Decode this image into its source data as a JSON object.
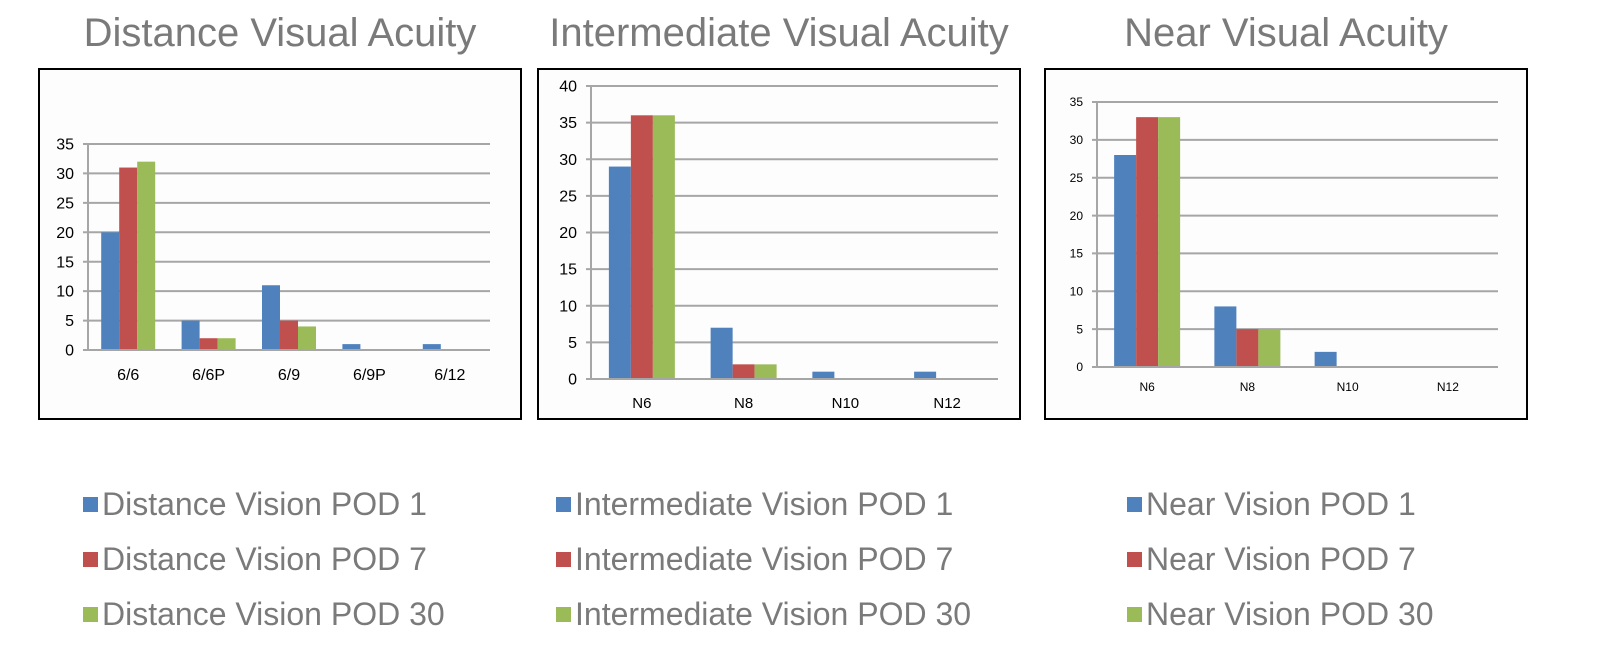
{
  "colors": {
    "series": [
      "#4F81BD",
      "#C0504D",
      "#9BBB59"
    ],
    "gridline": "#a6a6a6",
    "frame": "#000000",
    "plot_bg": "#fdfdfd"
  },
  "legends": [
    [
      "Distance Vision POD 1",
      "Distance Vision POD 7",
      "Distance Vision POD 30"
    ],
    [
      "Intermediate Vision POD 1",
      "Intermediate Vision POD 7",
      "Intermediate Vision POD 30"
    ],
    [
      "Near Vision POD 1",
      "Near Vision POD 7",
      "Near Vision POD 30"
    ]
  ],
  "chart_data": [
    {
      "type": "bar",
      "title": "Distance Visual Acuity",
      "categories": [
        "6/6",
        "6/6P",
        "6/9",
        "6/9P",
        "6/12"
      ],
      "series": [
        {
          "name": "Distance Vision POD 1",
          "values": [
            20,
            5,
            11,
            1,
            1
          ]
        },
        {
          "name": "Distance Vision POD 7",
          "values": [
            31,
            2,
            5,
            0,
            0
          ]
        },
        {
          "name": "Distance Vision POD 30",
          "values": [
            32,
            2,
            4,
            0,
            0
          ]
        }
      ],
      "ylim": [
        0,
        35
      ],
      "yticks": [
        "0",
        "5",
        "10",
        "15",
        "20",
        "25",
        "30",
        "35"
      ],
      "grid": true
    },
    {
      "type": "bar",
      "title": "Intermediate Visual Acuity",
      "categories": [
        "N6",
        "N8",
        "N10",
        "N12"
      ],
      "series": [
        {
          "name": "Intermediate Vision POD 1",
          "values": [
            29,
            7,
            1,
            1
          ]
        },
        {
          "name": "Intermediate Vision POD 7",
          "values": [
            36,
            2,
            0,
            0
          ]
        },
        {
          "name": "Intermediate Vision POD 30",
          "values": [
            36,
            2,
            0,
            0
          ]
        }
      ],
      "ylim": [
        0,
        40
      ],
      "yticks": [
        "0",
        "5",
        "10",
        "15",
        "20",
        "25",
        "30",
        "35",
        "40"
      ],
      "grid": true
    },
    {
      "type": "bar",
      "title": "Near Visual Acuity",
      "categories": [
        "N6",
        "N8",
        "N10",
        "N12"
      ],
      "series": [
        {
          "name": "Near Vision POD 1",
          "values": [
            28,
            8,
            2,
            0
          ]
        },
        {
          "name": "Near Vision POD 7",
          "values": [
            33,
            5,
            0,
            0
          ]
        },
        {
          "name": "Near Vision POD 30",
          "values": [
            33,
            5,
            0,
            0
          ]
        }
      ],
      "ylim": [
        0,
        35
      ],
      "yticks": [
        "0",
        "5",
        "10",
        "15",
        "20",
        "25",
        "30",
        "35"
      ],
      "grid": true
    }
  ]
}
